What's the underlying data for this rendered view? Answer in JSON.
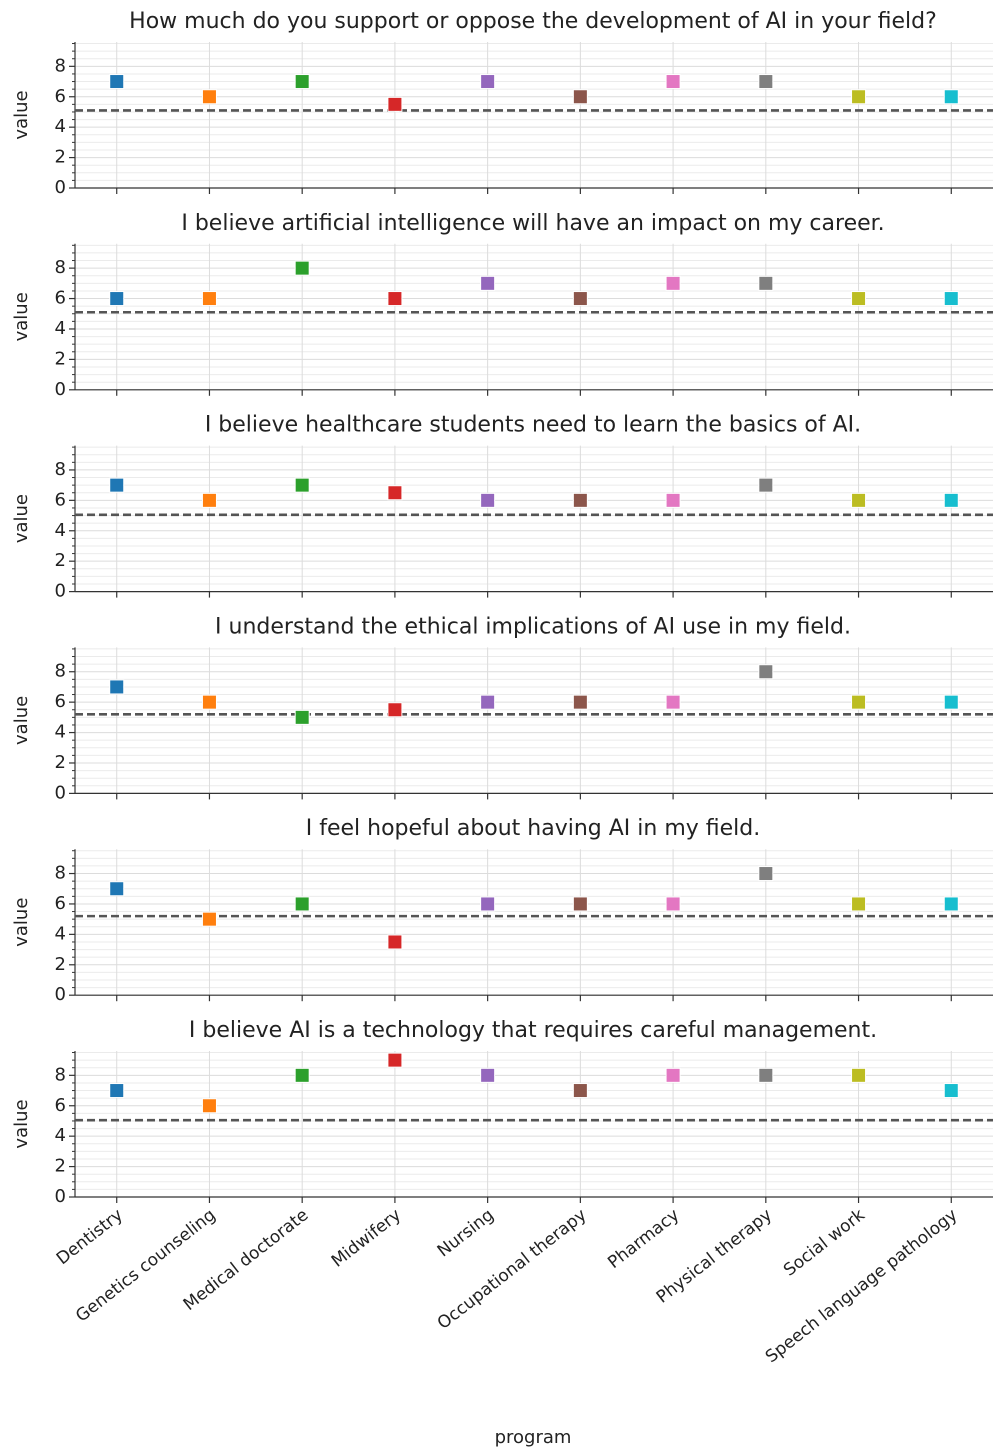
{
  "chart_data": [
    {
      "type": "scatter",
      "title": "How much do you support or oppose the development of AI in your field?",
      "ylabel": "value",
      "values": [
        7,
        6,
        7,
        5.5,
        7,
        6,
        7,
        7,
        6,
        6
      ],
      "reference_line": 5.1,
      "ylim": [
        0,
        9.6
      ],
      "yticks": [
        0,
        2,
        4,
        6,
        8
      ],
      "yminorticks": [
        0.5,
        1,
        1.5,
        2.5,
        3,
        3.5,
        4.5,
        5,
        5.5,
        6.5,
        7,
        7.5,
        8.5,
        9,
        9.5
      ],
      "grid": true
    },
    {
      "type": "scatter",
      "title": "I believe artificial intelligence will have an impact on my career.",
      "ylabel": "value",
      "values": [
        6,
        6,
        8,
        6,
        7,
        6,
        7,
        7,
        6,
        6
      ],
      "reference_line": 5.1,
      "ylim": [
        0,
        9.6
      ],
      "yticks": [
        0,
        2,
        4,
        6,
        8
      ],
      "yminorticks": [
        0.5,
        1,
        1.5,
        2.5,
        3,
        3.5,
        4.5,
        5,
        5.5,
        6.5,
        7,
        7.5,
        8.5,
        9,
        9.5
      ],
      "grid": true
    },
    {
      "type": "scatter",
      "title": "I believe healthcare students need to learn the basics of AI.",
      "ylabel": "value",
      "values": [
        7,
        6,
        7,
        6.5,
        6,
        6,
        6,
        7,
        6,
        6
      ],
      "reference_line": 5.05,
      "ylim": [
        0,
        9.6
      ],
      "yticks": [
        0,
        2,
        4,
        6,
        8
      ],
      "yminorticks": [
        0.5,
        1,
        1.5,
        2.5,
        3,
        3.5,
        4.5,
        5,
        5.5,
        6.5,
        7,
        7.5,
        8.5,
        9,
        9.5
      ],
      "grid": true
    },
    {
      "type": "scatter",
      "title": "I understand the ethical implications of AI use in my field.",
      "ylabel": "value",
      "values": [
        7,
        6,
        5,
        5.5,
        6,
        6,
        6,
        8,
        6,
        6
      ],
      "reference_line": 5.2,
      "ylim": [
        0,
        9.6
      ],
      "yticks": [
        0,
        2,
        4,
        6,
        8
      ],
      "yminorticks": [
        0.5,
        1,
        1.5,
        2.5,
        3,
        3.5,
        4.5,
        5,
        5.5,
        6.5,
        7,
        7.5,
        8.5,
        9,
        9.5
      ],
      "grid": true
    },
    {
      "type": "scatter",
      "title": "I feel hopeful about having AI in my field.",
      "ylabel": "value",
      "values": [
        7,
        5,
        6,
        3.5,
        6,
        6,
        6,
        8,
        6,
        6
      ],
      "reference_line": 5.2,
      "ylim": [
        0,
        9.6
      ],
      "yticks": [
        0,
        2,
        4,
        6,
        8
      ],
      "yminorticks": [
        0.5,
        1,
        1.5,
        2.5,
        3,
        3.5,
        4.5,
        5,
        5.5,
        6.5,
        7,
        7.5,
        8.5,
        9,
        9.5
      ],
      "grid": true
    },
    {
      "type": "scatter",
      "title": "I believe AI is a technology that requires careful management.",
      "ylabel": "value",
      "xlabel": "program",
      "categories": [
        "Dentistry",
        "Genetics counseling",
        "Medical doctorate",
        "Midwifery",
        "Nursing",
        "Occupational therapy",
        "Pharmacy",
        "Physical therapy",
        "Social work",
        "Speech language pathology"
      ],
      "colors": [
        "#1f77b4",
        "#ff7f0e",
        "#2ca02c",
        "#d62728",
        "#9467bd",
        "#8c564b",
        "#e377c2",
        "#7f7f7f",
        "#bcbd22",
        "#17becf"
      ],
      "values": [
        7,
        6,
        8,
        9,
        8,
        7,
        8,
        8,
        8,
        7
      ],
      "reference_line": 5.05,
      "ylim": [
        0,
        9.6
      ],
      "yticks": [
        0,
        2,
        4,
        6,
        8
      ],
      "yminorticks": [
        0.5,
        1,
        1.5,
        2.5,
        3,
        3.5,
        4.5,
        5,
        5.5,
        6.5,
        7,
        7.5,
        8.5,
        9,
        9.5
      ],
      "grid": true
    }
  ]
}
